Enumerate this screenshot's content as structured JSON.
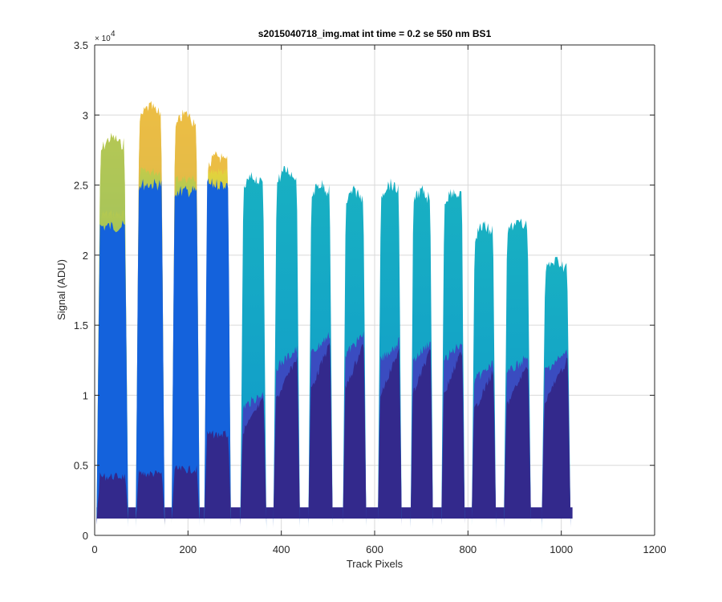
{
  "chart_data": {
    "type": "area",
    "title": "s2015040718_img.mat int time = 0.2 se  550 nm BS1",
    "xlabel": "Track Pixels",
    "ylabel": "Signal (ADU)",
    "xlim": [
      0,
      1200
    ],
    "ylim": [
      0,
      35000
    ],
    "xticks": [
      "0",
      "200",
      "400",
      "600",
      "800",
      "1000",
      "1200"
    ],
    "yticks": [
      "0",
      "0.5",
      "1",
      "1.5",
      "2",
      "2.5",
      "3",
      "3.5"
    ],
    "y_exponent_base": "× 10",
    "y_exponent_power": "4",
    "grid": true,
    "colormap": "parula",
    "baseline": 1200,
    "track_segments": [
      {
        "x_start": 4,
        "x_end": 72,
        "peak": 28800,
        "mid": 22500,
        "low": 4500
      },
      {
        "x_start": 88,
        "x_end": 150,
        "peak": 31000,
        "mid": 25500,
        "low": 4700
      },
      {
        "x_start": 165,
        "x_end": 225,
        "peak": 30500,
        "mid": 25000,
        "low": 5000
      },
      {
        "x_start": 235,
        "x_end": 292,
        "peak": 27500,
        "mid": 25500,
        "low": 7500
      },
      {
        "x_start": 312,
        "x_end": 368,
        "peak": 26000,
        "mid": 25000,
        "low": 10000
      },
      {
        "x_start": 383,
        "x_end": 440,
        "peak": 26500,
        "mid": 26000,
        "low": 13000
      },
      {
        "x_start": 458,
        "x_end": 510,
        "peak": 25500,
        "mid": 25000,
        "low": 14000
      },
      {
        "x_start": 532,
        "x_end": 582,
        "peak": 25000,
        "mid": 24500,
        "low": 14000
      },
      {
        "x_start": 607,
        "x_end": 658,
        "peak": 25500,
        "mid": 25000,
        "low": 13500
      },
      {
        "x_start": 677,
        "x_end": 725,
        "peak": 25000,
        "mid": 24500,
        "low": 13500
      },
      {
        "x_start": 743,
        "x_end": 793,
        "peak": 25000,
        "mid": 24500,
        "low": 13500
      },
      {
        "x_start": 808,
        "x_end": 860,
        "peak": 22500,
        "mid": 22000,
        "low": 12000
      },
      {
        "x_start": 877,
        "x_end": 935,
        "peak": 22800,
        "mid": 22300,
        "low": 12500
      },
      {
        "x_start": 958,
        "x_end": 1020,
        "peak": 20000,
        "mid": 19500,
        "low": 12800
      }
    ],
    "colors": {
      "dark": "#33298c",
      "blue": "#1462dc",
      "teal": "#10a5c6",
      "green": "#84bd66",
      "yellow": "#f5d735",
      "orange": "#ebb847",
      "grid": "#d9d9d9",
      "axis": "#262626"
    }
  }
}
